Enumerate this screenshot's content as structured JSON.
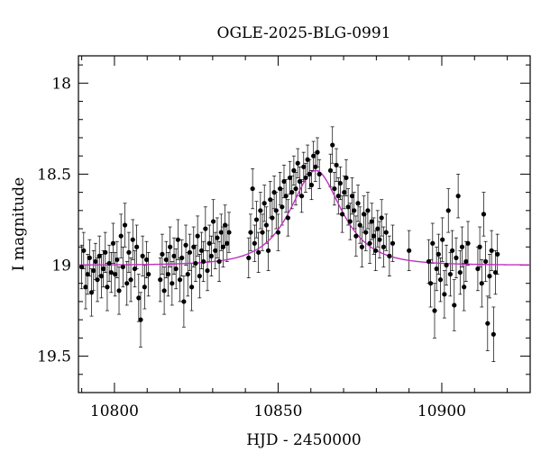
{
  "chart_data": {
    "type": "scatter",
    "title": "OGLE-2025-BLG-0991",
    "xlabel": "HJD - 2450000",
    "ylabel": "I magnitude",
    "xlim": [
      10789,
      10927
    ],
    "ylim": [
      19.7,
      17.85
    ],
    "y_inverted": true,
    "x_ticks": [
      10800,
      10850,
      10900
    ],
    "x_tick_labels": [
      "10800",
      "10850",
      "10900"
    ],
    "y_ticks": [
      18.0,
      18.5,
      19.0,
      19.5
    ],
    "y_tick_labels": [
      "18",
      "18.5",
      "19",
      "19.5"
    ],
    "grid": false,
    "colors": {
      "points": "#000000",
      "model": "#c030c0"
    },
    "model": {
      "description_type": "point-lens light curve",
      "baseline_mag": 19.0,
      "peak_mag": 18.48,
      "t0": 10861.5,
      "tE": 11.0
    },
    "series": [
      {
        "points": [
          [
            10790.0,
            19.01,
            0.12
          ],
          [
            10790.6,
            18.92,
            0.1
          ],
          [
            10791.2,
            19.12,
            0.12
          ],
          [
            10791.8,
            19.05,
            0.11
          ],
          [
            10792.4,
            18.96,
            0.1
          ],
          [
            10793.0,
            19.15,
            0.13
          ],
          [
            10793.6,
            19.03,
            0.11
          ],
          [
            10794.2,
            18.98,
            0.1
          ],
          [
            10794.8,
            19.08,
            0.12
          ],
          [
            10795.4,
            18.95,
            0.11
          ],
          [
            10796.0,
            19.06,
            0.12
          ],
          [
            10796.6,
            19.02,
            0.1
          ],
          [
            10797.2,
            18.93,
            0.11
          ],
          [
            10797.8,
            19.12,
            0.13
          ],
          [
            10798.4,
            18.99,
            0.1
          ],
          [
            10799.0,
            19.04,
            0.11
          ],
          [
            10799.6,
            18.88,
            0.11
          ],
          [
            10800.2,
            19.05,
            0.12
          ],
          [
            10800.8,
            18.97,
            0.1
          ],
          [
            10801.4,
            19.14,
            0.13
          ],
          [
            10802.0,
            18.84,
            0.12
          ],
          [
            10802.6,
            19.01,
            0.11
          ],
          [
            10803.2,
            18.78,
            0.12
          ],
          [
            10803.8,
            19.1,
            0.12
          ],
          [
            10804.4,
            18.93,
            0.11
          ],
          [
            10805.0,
            19.08,
            0.12
          ],
          [
            10805.6,
            18.86,
            0.11
          ],
          [
            10806.2,
            19.02,
            0.1
          ],
          [
            10806.8,
            18.9,
            0.12
          ],
          [
            10807.4,
            19.18,
            0.13
          ],
          [
            10808.0,
            19.3,
            0.15
          ],
          [
            10808.6,
            18.95,
            0.11
          ],
          [
            10809.2,
            19.12,
            0.12
          ],
          [
            10809.8,
            18.97,
            0.1
          ],
          [
            10810.4,
            19.05,
            0.12
          ],
          [
            10814.0,
            19.08,
            0.12
          ],
          [
            10814.6,
            18.94,
            0.11
          ],
          [
            10815.2,
            19.14,
            0.13
          ],
          [
            10815.8,
            18.97,
            0.1
          ],
          [
            10816.4,
            19.05,
            0.12
          ],
          [
            10817.0,
            18.9,
            0.11
          ],
          [
            10817.6,
            19.1,
            0.12
          ],
          [
            10818.2,
            18.95,
            0.1
          ],
          [
            10818.8,
            19.02,
            0.11
          ],
          [
            10819.4,
            18.86,
            0.11
          ],
          [
            10820.0,
            19.08,
            0.12
          ],
          [
            10820.6,
            18.96,
            0.1
          ],
          [
            10821.2,
            19.2,
            0.14
          ],
          [
            10821.8,
            18.89,
            0.11
          ],
          [
            10822.4,
            19.05,
            0.12
          ],
          [
            10823.0,
            18.93,
            0.1
          ],
          [
            10823.6,
            19.12,
            0.13
          ],
          [
            10824.2,
            18.9,
            0.11
          ],
          [
            10824.8,
            18.99,
            0.1
          ],
          [
            10825.4,
            18.84,
            0.11
          ],
          [
            10826.0,
            19.06,
            0.12
          ],
          [
            10826.6,
            18.92,
            0.1
          ],
          [
            10827.2,
            18.98,
            0.11
          ],
          [
            10827.8,
            18.8,
            0.12
          ],
          [
            10828.4,
            19.03,
            0.11
          ],
          [
            10829.0,
            18.88,
            0.1
          ],
          [
            10829.6,
            18.95,
            0.11
          ],
          [
            10830.2,
            18.76,
            0.12
          ],
          [
            10830.8,
            18.92,
            0.1
          ],
          [
            10831.4,
            18.85,
            0.11
          ],
          [
            10832.0,
            18.98,
            0.11
          ],
          [
            10832.6,
            18.82,
            0.1
          ],
          [
            10833.2,
            18.9,
            0.11
          ],
          [
            10833.8,
            18.78,
            0.11
          ],
          [
            10834.4,
            18.88,
            0.1
          ],
          [
            10835.0,
            18.82,
            0.11
          ],
          [
            10841.0,
            18.96,
            0.11
          ],
          [
            10841.6,
            18.82,
            0.1
          ],
          [
            10842.2,
            18.58,
            0.11
          ],
          [
            10842.8,
            18.88,
            0.1
          ],
          [
            10843.4,
            18.75,
            0.1
          ],
          [
            10844.0,
            18.93,
            0.11
          ],
          [
            10844.6,
            18.7,
            0.1
          ],
          [
            10845.2,
            18.82,
            0.1
          ],
          [
            10845.8,
            18.66,
            0.1
          ],
          [
            10846.4,
            18.78,
            0.1
          ],
          [
            10847.0,
            18.92,
            0.11
          ],
          [
            10847.6,
            18.64,
            0.1
          ],
          [
            10848.2,
            18.74,
            0.1
          ],
          [
            10848.8,
            18.6,
            0.09
          ],
          [
            10849.4,
            18.7,
            0.1
          ],
          [
            10850.0,
            18.82,
            0.1
          ],
          [
            10850.6,
            18.58,
            0.09
          ],
          [
            10851.2,
            18.68,
            0.1
          ],
          [
            10851.8,
            18.54,
            0.09
          ],
          [
            10852.4,
            18.62,
            0.09
          ],
          [
            10853.0,
            18.74,
            0.1
          ],
          [
            10853.6,
            18.52,
            0.09
          ],
          [
            10854.2,
            18.6,
            0.09
          ],
          [
            10854.8,
            18.48,
            0.08
          ],
          [
            10855.4,
            18.58,
            0.09
          ],
          [
            10856.0,
            18.44,
            0.08
          ],
          [
            10856.6,
            18.54,
            0.08
          ],
          [
            10857.2,
            18.62,
            0.09
          ],
          [
            10857.8,
            18.46,
            0.08
          ],
          [
            10858.4,
            18.52,
            0.08
          ],
          [
            10859.0,
            18.42,
            0.08
          ],
          [
            10859.6,
            18.5,
            0.08
          ],
          [
            10860.2,
            18.56,
            0.08
          ],
          [
            10860.8,
            18.4,
            0.08
          ],
          [
            10861.4,
            18.46,
            0.08
          ],
          [
            10862.0,
            18.38,
            0.08
          ],
          [
            10862.6,
            18.5,
            0.08
          ],
          [
            10866.0,
            18.48,
            0.09
          ],
          [
            10866.6,
            18.34,
            0.1
          ],
          [
            10867.2,
            18.58,
            0.09
          ],
          [
            10867.8,
            18.45,
            0.09
          ],
          [
            10868.4,
            18.62,
            0.1
          ],
          [
            10869.0,
            18.55,
            0.09
          ],
          [
            10869.6,
            18.72,
            0.1
          ],
          [
            10870.2,
            18.6,
            0.09
          ],
          [
            10870.8,
            18.52,
            0.1
          ],
          [
            10871.4,
            18.68,
            0.1
          ],
          [
            10872.0,
            18.76,
            0.1
          ],
          [
            10872.6,
            18.62,
            0.1
          ],
          [
            10873.2,
            18.7,
            0.1
          ],
          [
            10873.8,
            18.84,
            0.11
          ],
          [
            10874.4,
            18.66,
            0.1
          ],
          [
            10875.0,
            18.78,
            0.1
          ],
          [
            10875.6,
            18.9,
            0.11
          ],
          [
            10876.2,
            18.72,
            0.1
          ],
          [
            10876.8,
            18.82,
            0.1
          ],
          [
            10877.4,
            18.7,
            0.1
          ],
          [
            10878.0,
            18.88,
            0.11
          ],
          [
            10878.6,
            18.76,
            0.1
          ],
          [
            10879.2,
            18.84,
            0.1
          ],
          [
            10879.8,
            18.92,
            0.11
          ],
          [
            10880.4,
            18.8,
            0.1
          ],
          [
            10881.0,
            18.86,
            0.1
          ],
          [
            10881.6,
            18.74,
            0.1
          ],
          [
            10882.2,
            18.9,
            0.11
          ],
          [
            10883.0,
            18.82,
            0.1
          ],
          [
            10884.0,
            18.95,
            0.11
          ],
          [
            10885.0,
            18.88,
            0.1
          ],
          [
            10890.0,
            18.92,
            0.11
          ],
          [
            10896.0,
            18.98,
            0.12
          ],
          [
            10896.6,
            19.1,
            0.13
          ],
          [
            10897.2,
            18.88,
            0.11
          ],
          [
            10897.8,
            19.25,
            0.15
          ],
          [
            10898.4,
            19.02,
            0.12
          ],
          [
            10899.0,
            18.94,
            0.11
          ],
          [
            10899.6,
            19.08,
            0.12
          ],
          [
            10900.2,
            18.86,
            0.12
          ],
          [
            10900.8,
            19.16,
            0.13
          ],
          [
            10901.4,
            19.0,
            0.11
          ],
          [
            10902.0,
            18.7,
            0.12
          ],
          [
            10902.6,
            19.05,
            0.12
          ],
          [
            10903.2,
            18.92,
            0.11
          ],
          [
            10903.8,
            19.22,
            0.14
          ],
          [
            10904.4,
            18.96,
            0.11
          ],
          [
            10905.0,
            18.62,
            0.12
          ],
          [
            10905.6,
            19.04,
            0.12
          ],
          [
            10906.2,
            18.9,
            0.11
          ],
          [
            10906.8,
            19.12,
            0.13
          ],
          [
            10907.4,
            18.98,
            0.11
          ],
          [
            10908.0,
            18.88,
            0.12
          ],
          [
            10911.0,
            19.02,
            0.12
          ],
          [
            10911.6,
            18.9,
            0.11
          ],
          [
            10912.2,
            19.1,
            0.13
          ],
          [
            10912.8,
            18.72,
            0.12
          ],
          [
            10913.4,
            18.98,
            0.11
          ],
          [
            10914.0,
            19.32,
            0.15
          ],
          [
            10914.6,
            19.06,
            0.12
          ],
          [
            10915.2,
            18.92,
            0.11
          ],
          [
            10915.8,
            19.38,
            0.15
          ],
          [
            10916.4,
            19.04,
            0.12
          ],
          [
            10917.0,
            18.94,
            0.11
          ]
        ]
      }
    ]
  }
}
